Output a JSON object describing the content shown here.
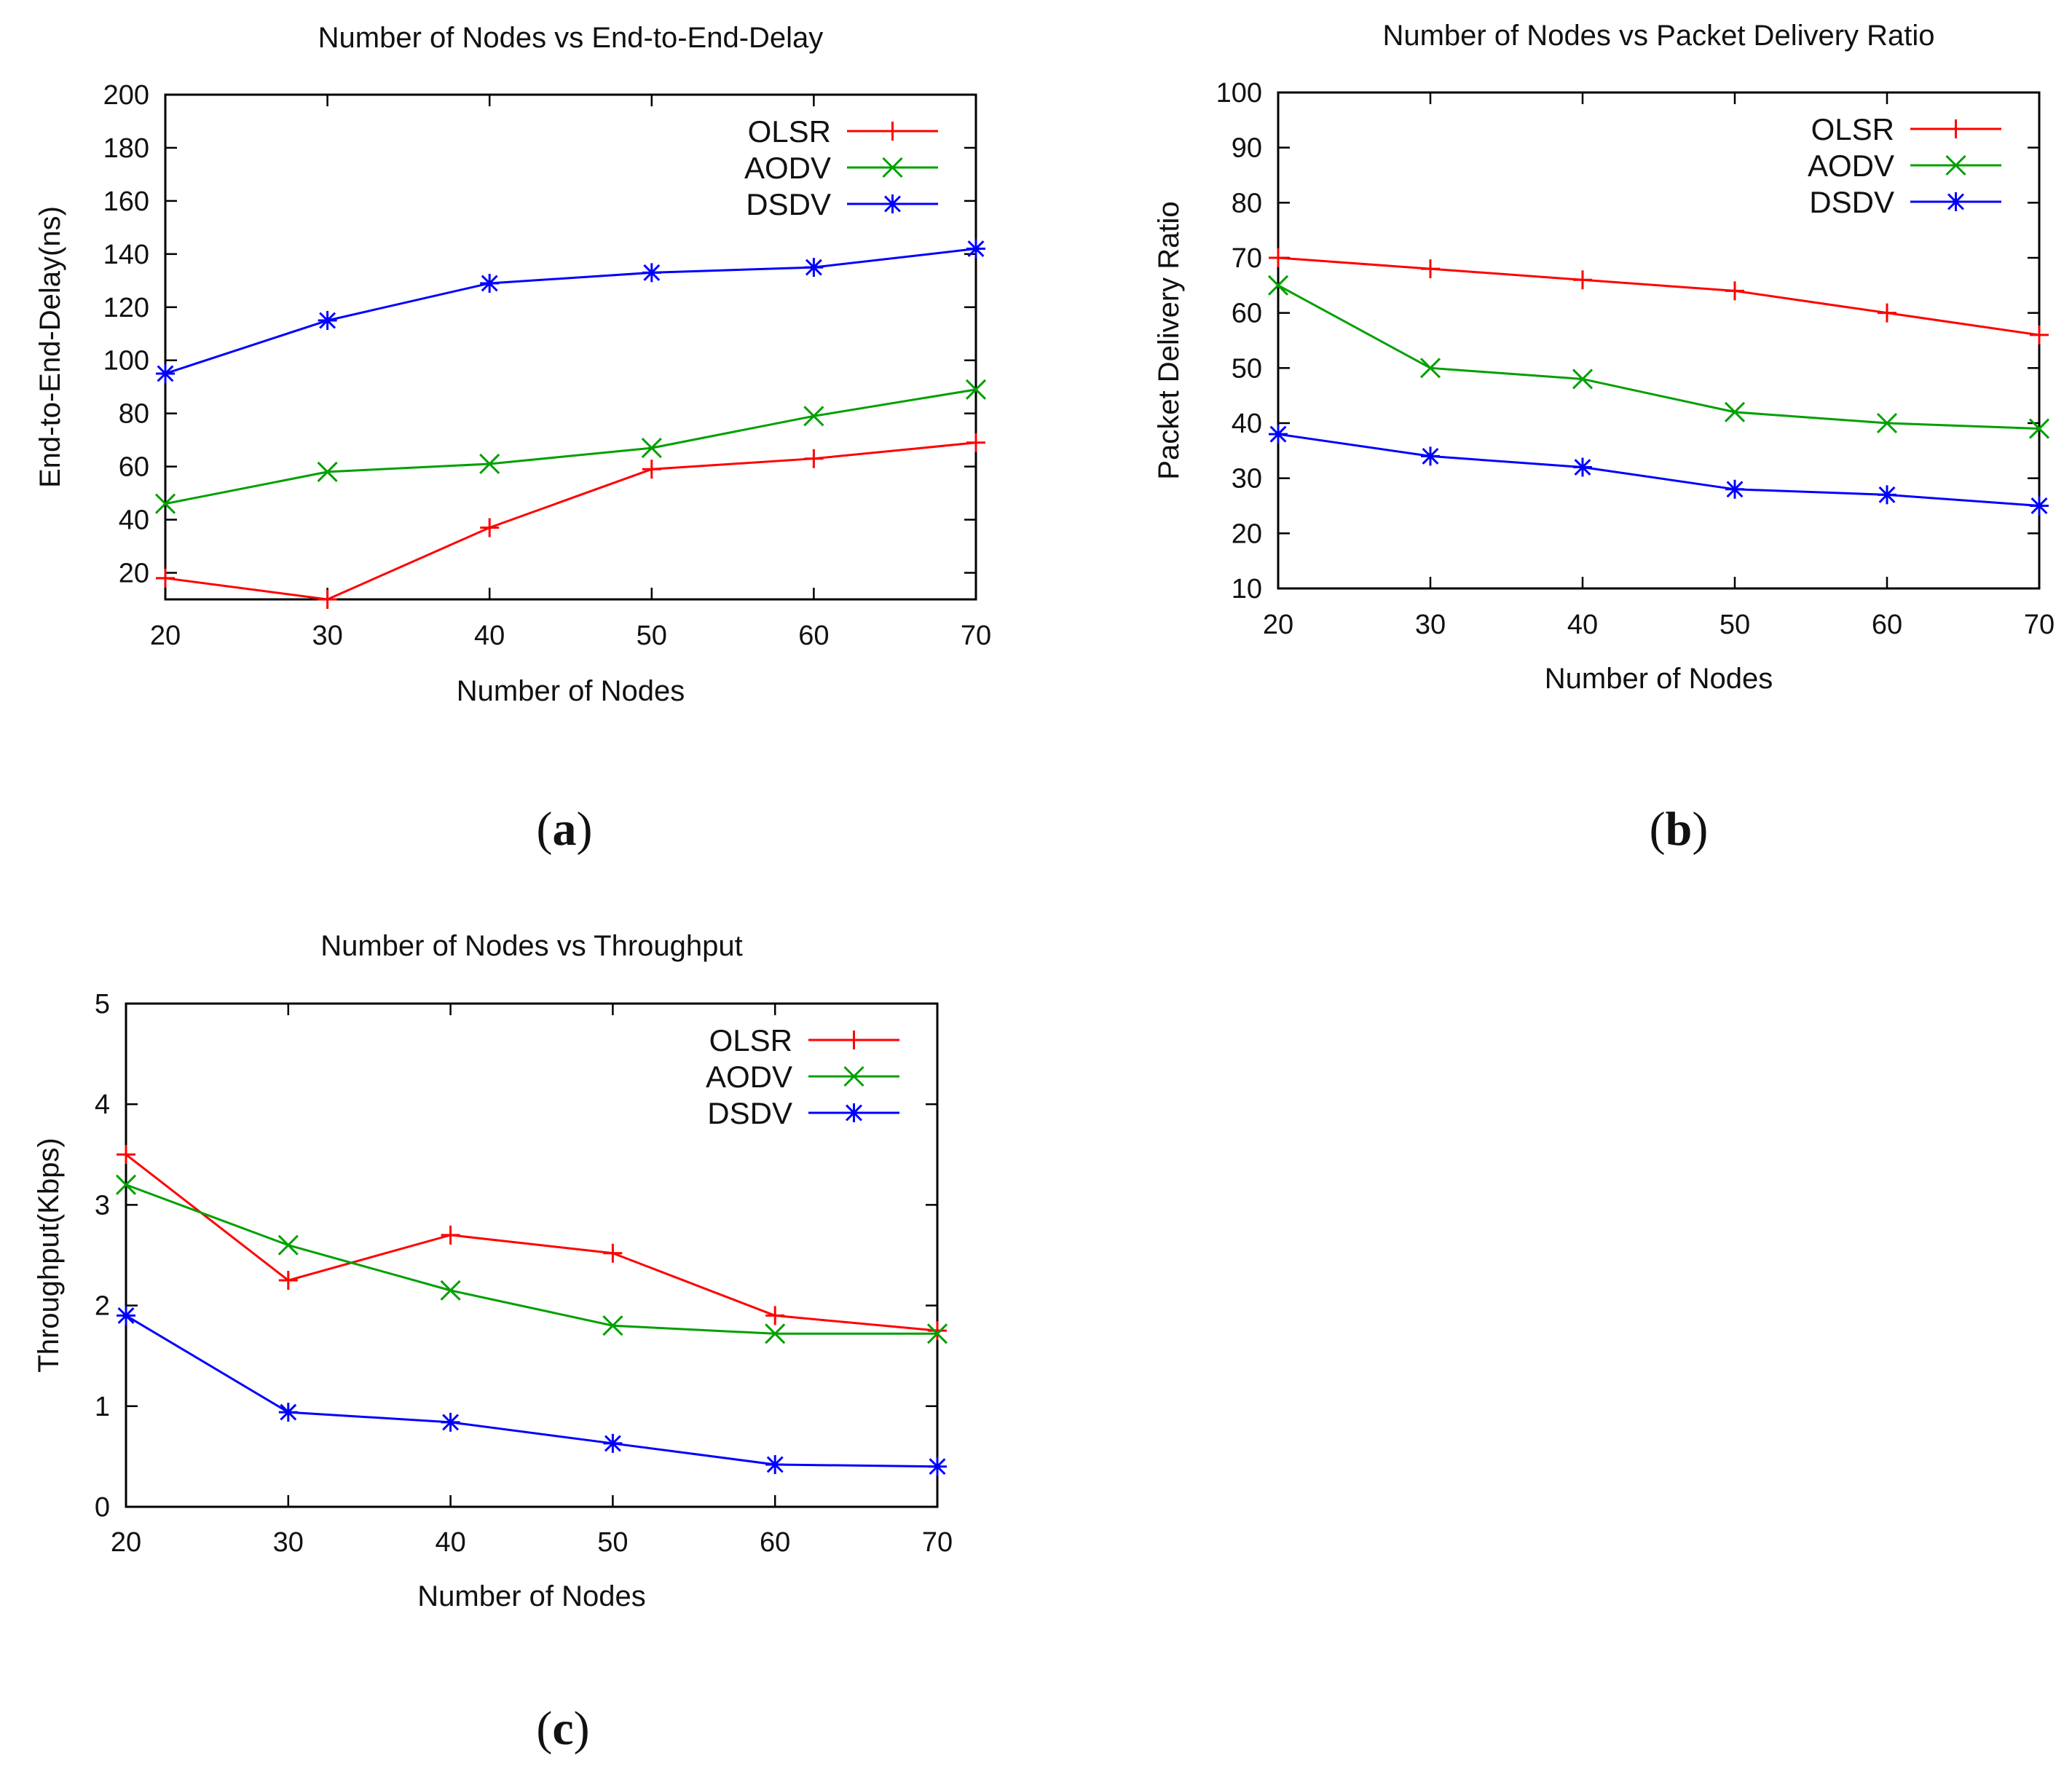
{
  "chart_data": [
    {
      "type": "line",
      "panel": "(a)",
      "panel_letter": "a",
      "title": "Number of Nodes vs End-to-End-Delay",
      "xlabel": "Number of Nodes",
      "ylabel": "End-to-End-Delay(ns)",
      "xlim": [
        20,
        70
      ],
      "ylim": [
        10,
        200
      ],
      "xticks": [
        20,
        30,
        40,
        50,
        60,
        70
      ],
      "yticks": [
        20,
        40,
        60,
        80,
        100,
        120,
        140,
        160,
        180,
        200
      ],
      "legend": "top-right",
      "grid": false,
      "x": [
        20,
        30,
        40,
        50,
        60,
        70
      ],
      "series": [
        {
          "name": "OLSR",
          "color": "#ff0000",
          "marker": "plus",
          "values": [
            18,
            10,
            37,
            59,
            63,
            69
          ]
        },
        {
          "name": "AODV",
          "color": "#00a000",
          "marker": "cross",
          "values": [
            46,
            58,
            61,
            67,
            79,
            89
          ]
        },
        {
          "name": "DSDV",
          "color": "#0000ff",
          "marker": "star",
          "values": [
            95,
            115,
            129,
            133,
            135,
            142
          ]
        }
      ]
    },
    {
      "type": "line",
      "panel": "(b)",
      "panel_letter": "b",
      "title": "Number of Nodes vs Packet Delivery Ratio",
      "xlabel": "Number of Nodes",
      "ylabel": "Packet Delivery Ratio",
      "xlim": [
        20,
        70
      ],
      "ylim": [
        10,
        100
      ],
      "xticks": [
        20,
        30,
        40,
        50,
        60,
        70
      ],
      "yticks": [
        10,
        20,
        30,
        40,
        50,
        60,
        70,
        80,
        90,
        100
      ],
      "legend": "top-right",
      "grid": false,
      "x": [
        20,
        30,
        40,
        50,
        60,
        70
      ],
      "series": [
        {
          "name": "OLSR",
          "color": "#ff0000",
          "marker": "plus",
          "values": [
            70,
            68,
            66,
            64,
            60,
            56
          ]
        },
        {
          "name": "AODV",
          "color": "#00a000",
          "marker": "cross",
          "values": [
            65,
            50,
            48,
            42,
            40,
            39
          ]
        },
        {
          "name": "DSDV",
          "color": "#0000ff",
          "marker": "star",
          "values": [
            38,
            34,
            32,
            28,
            27,
            25
          ]
        }
      ]
    },
    {
      "type": "line",
      "panel": "(c)",
      "panel_letter": "c",
      "title": "Number of Nodes vs Throughput",
      "xlabel": "Number of Nodes",
      "ylabel": "Throughput(Kbps)",
      "xlim": [
        20,
        70
      ],
      "ylim": [
        0,
        5
      ],
      "xticks": [
        20,
        30,
        40,
        50,
        60,
        70
      ],
      "yticks": [
        0,
        1,
        2,
        3,
        4,
        5
      ],
      "legend": "top-right",
      "grid": false,
      "x": [
        20,
        30,
        40,
        50,
        60,
        70
      ],
      "series": [
        {
          "name": "OLSR",
          "color": "#ff0000",
          "marker": "plus",
          "values": [
            3.5,
            2.25,
            2.7,
            2.52,
            1.9,
            1.75
          ]
        },
        {
          "name": "AODV",
          "color": "#00a000",
          "marker": "cross",
          "values": [
            3.2,
            2.6,
            2.15,
            1.8,
            1.72,
            1.72
          ]
        },
        {
          "name": "DSDV",
          "color": "#0000ff",
          "marker": "star",
          "values": [
            1.9,
            0.94,
            0.84,
            0.63,
            0.42,
            0.4
          ]
        }
      ]
    }
  ]
}
